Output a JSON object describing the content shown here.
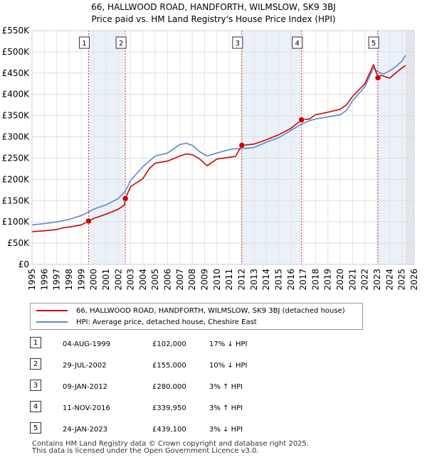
{
  "header": {
    "title_line1": "66, HALLWOOD ROAD, HANDFORTH, WILMSLOW, SK9 3BJ",
    "title_line2": "Price paid vs. HM Land Registry's House Price Index (HPI)"
  },
  "chart_data": {
    "type": "line",
    "x_range": [
      1995,
      2026
    ],
    "ylim": [
      0,
      550000
    ],
    "y_ticks": [
      0,
      50000,
      100000,
      150000,
      200000,
      250000,
      300000,
      350000,
      400000,
      450000,
      500000,
      550000
    ],
    "y_tick_labels": [
      "£0",
      "£50K",
      "£100K",
      "£150K",
      "£200K",
      "£250K",
      "£300K",
      "£350K",
      "£400K",
      "£450K",
      "£500K",
      "£550K"
    ],
    "x_ticks": [
      1995,
      1996,
      1997,
      1998,
      1999,
      2000,
      2001,
      2002,
      2003,
      2004,
      2005,
      2006,
      2007,
      2008,
      2009,
      2010,
      2011,
      2012,
      2013,
      2014,
      2015,
      2016,
      2017,
      2018,
      2019,
      2020,
      2021,
      2022,
      2023,
      2024,
      2025,
      2026
    ],
    "x_tick_labels": [
      "1995",
      "1996",
      "1997",
      "1998",
      "1999",
      "2000",
      "2001",
      "2002",
      "2003",
      "2004",
      "2005",
      "2006",
      "2007",
      "2008",
      "2009",
      "2010",
      "2011",
      "2012",
      "2013",
      "2014",
      "2015",
      "2016",
      "2017",
      "2018",
      "2019",
      "2020",
      "2021",
      "2022",
      "2023",
      "2024",
      "2025",
      "2026"
    ],
    "series": [
      {
        "name": "66, HALLWOOD ROAD, HANDFORTH, WILMSLOW, SK9 3BJ (detached house)",
        "color": "#cc0000",
        "x": [
          1995.0,
          1996.0,
          1997.0,
          1997.5,
          1998.0,
          1999.0,
          1999.59,
          2000.0,
          2001.0,
          2002.0,
          2002.5,
          2002.57,
          2003.0,
          2004.0,
          2004.5,
          2005.0,
          2006.0,
          2007.0,
          2007.5,
          2008.0,
          2008.6,
          2009.2,
          2010.0,
          2011.0,
          2011.5,
          2012.02,
          2013.0,
          2014.0,
          2015.0,
          2016.0,
          2016.86,
          2017.5,
          2018.0,
          2019.0,
          2020.0,
          2020.5,
          2021.0,
          2022.0,
          2022.7,
          2023.06,
          2023.3,
          2023.8,
          2024.0,
          2024.5,
          2025.0,
          2025.3
        ],
        "y": [
          77000,
          79000,
          82000,
          86000,
          88000,
          93000,
          102000,
          108000,
          118000,
          130000,
          140000,
          155000,
          183000,
          202000,
          225000,
          238000,
          243000,
          255000,
          260000,
          258000,
          248000,
          232000,
          248000,
          252000,
          254000,
          280000,
          283000,
          293000,
          305000,
          320000,
          339950,
          342000,
          352000,
          358000,
          365000,
          375000,
          395000,
          425000,
          470000,
          439100,
          445000,
          440000,
          438000,
          450000,
          462000,
          468000
        ]
      },
      {
        "name": "HPI: Average price, detached house, Cheshire East",
        "color": "#5b8ac7",
        "x": [
          1995.0,
          1996.0,
          1997.0,
          1998.0,
          1999.0,
          1999.59,
          2000.0,
          2001.0,
          2002.0,
          2002.57,
          2003.0,
          2004.0,
          2005.0,
          2006.0,
          2007.0,
          2007.5,
          2008.0,
          2008.6,
          2009.2,
          2010.0,
          2011.0,
          2011.5,
          2012.02,
          2013.0,
          2014.0,
          2015.0,
          2016.0,
          2016.86,
          2017.5,
          2018.0,
          2019.0,
          2020.0,
          2020.5,
          2021.0,
          2022.0,
          2022.7,
          2023.06,
          2023.5,
          2024.0,
          2024.5,
          2025.0,
          2025.3
        ],
        "y": [
          93000,
          96000,
          100000,
          106000,
          115000,
          123000,
          130000,
          140000,
          155000,
          172000,
          198000,
          230000,
          255000,
          262000,
          282000,
          285000,
          280000,
          265000,
          255000,
          262000,
          270000,
          272000,
          272000,
          275000,
          287000,
          298000,
          315000,
          330000,
          338000,
          342000,
          347000,
          352000,
          362000,
          385000,
          418000,
          462000,
          453000,
          448000,
          455000,
          465000,
          478000,
          492000
        ]
      }
    ],
    "sales": [
      {
        "num": "1",
        "x": 1999.59,
        "price": 102000
      },
      {
        "num": "2",
        "x": 2002.57,
        "price": 155000
      },
      {
        "num": "3",
        "x": 2012.02,
        "price": 280000
      },
      {
        "num": "4",
        "x": 2016.86,
        "price": 339950
      },
      {
        "num": "5",
        "x": 2023.06,
        "price": 439100
      }
    ],
    "shaded_ranges": [
      [
        1999.59,
        2002.57
      ],
      [
        2012.02,
        2016.86
      ],
      [
        2023.06,
        2025.3
      ],
      [
        2025.3,
        2026
      ]
    ]
  },
  "legend": {
    "property_label": "66, HALLWOOD ROAD, HANDFORTH, WILMSLOW, SK9 3BJ (detached house)",
    "hpi_label": "HPI: Average price, detached house, Cheshire East",
    "property_color": "#cc0000",
    "hpi_color": "#5b8ac7"
  },
  "sales_table": [
    {
      "num": "1",
      "date": "04-AUG-1999",
      "price": "£102,000",
      "hpi": "17% ↓ HPI"
    },
    {
      "num": "2",
      "date": "29-JUL-2002",
      "price": "£155,000",
      "hpi": "10% ↓ HPI"
    },
    {
      "num": "3",
      "date": "09-JAN-2012",
      "price": "£280,000",
      "hpi": "3% ↑ HPI"
    },
    {
      "num": "4",
      "date": "11-NOV-2016",
      "price": "£339,950",
      "hpi": "3% ↑ HPI"
    },
    {
      "num": "5",
      "date": "24-JAN-2023",
      "price": "£439,100",
      "hpi": "3% ↓ HPI"
    }
  ],
  "footer": {
    "line1": "Contains HM Land Registry data © Crown copyright and database right 2025.",
    "line2": "This data is licensed under the Open Government Licence v3.0."
  }
}
